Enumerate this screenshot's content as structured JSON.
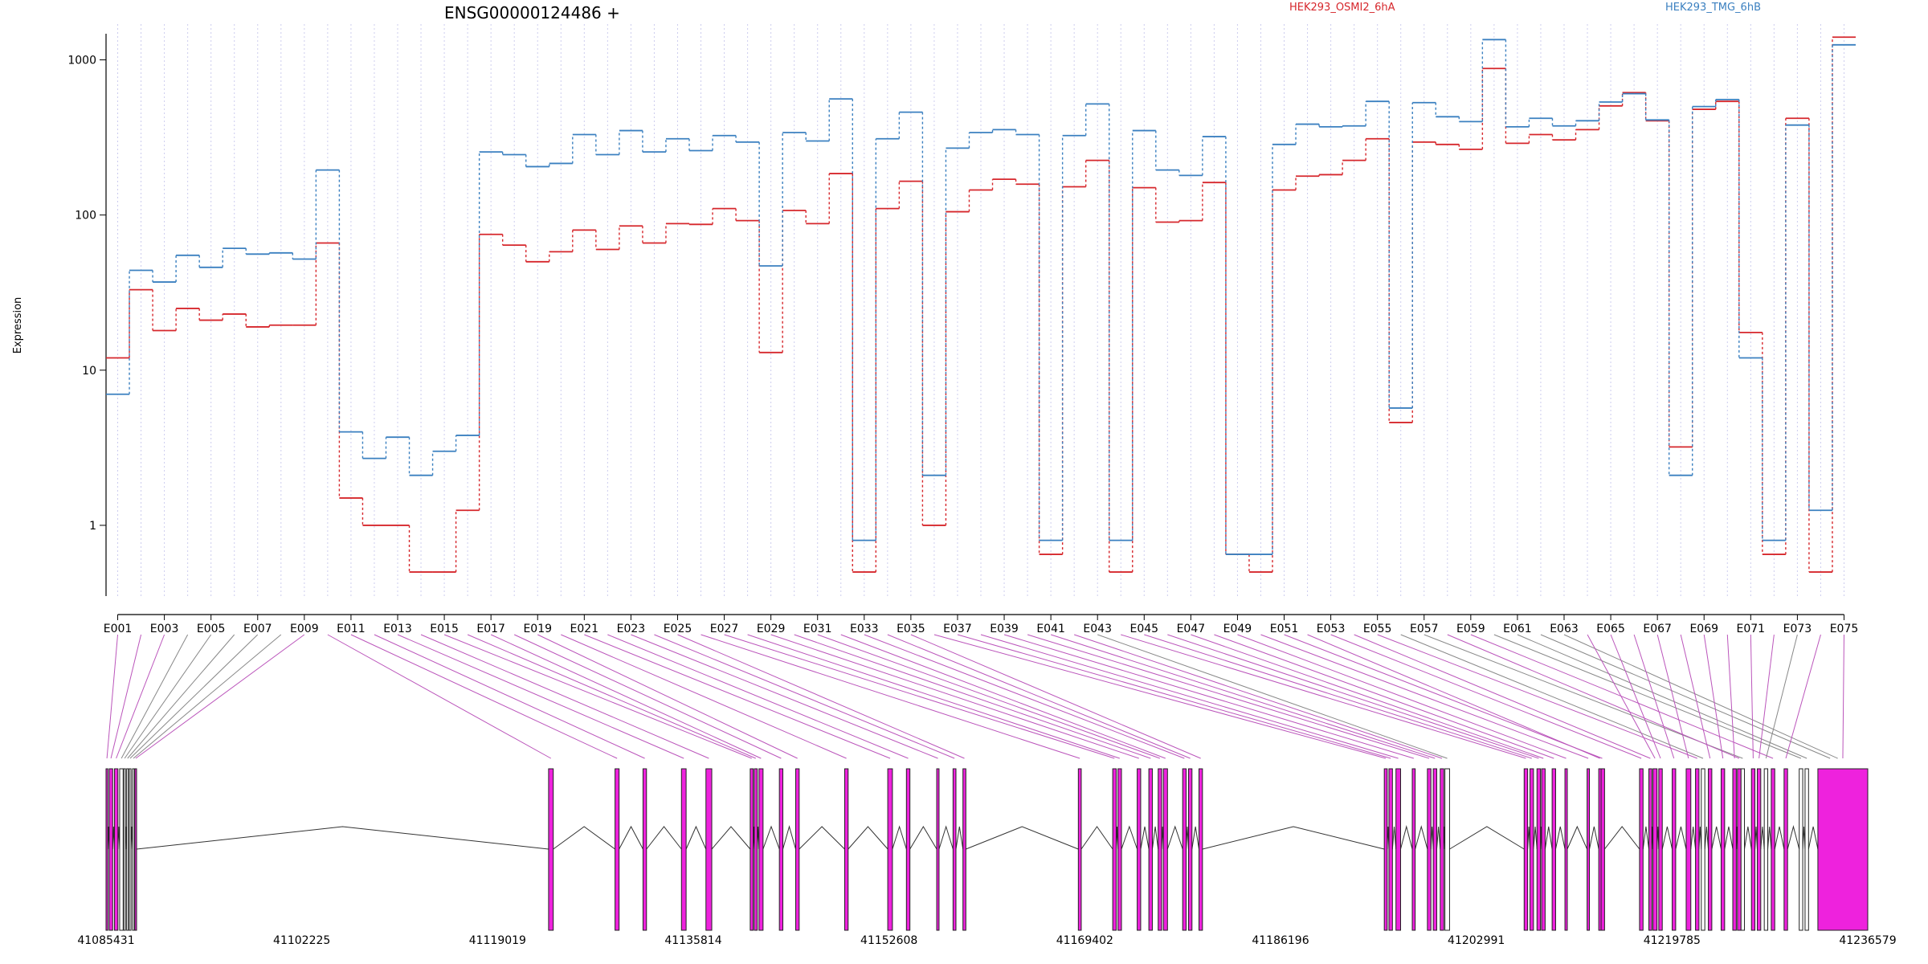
{
  "chart_data": {
    "type": "line",
    "title": "ENSG00000124486 +",
    "ylabel": "Expression",
    "xlabel": "",
    "yscale": "log",
    "ylim": [
      0.35,
      1700
    ],
    "yticks": [
      "1",
      "10",
      "100",
      "1000"
    ],
    "ytick_values": [
      1,
      10,
      100,
      1000
    ],
    "grid": "vertical dotted lines at each exon",
    "legend_placement": "top",
    "colors": {
      "HEK293_OSMI2_6hA": "#d6272c",
      "HEK293_TMG_6hB": "#3b80c0",
      "grid": "#ccccee",
      "exon_tested": "#ee22dd",
      "exon_untested": "#ffffff",
      "connector_tested": "#bb55bb",
      "connector_untested": "#888888"
    },
    "exon_tick_labels": [
      "E001",
      "E003",
      "E005",
      "E007",
      "E009",
      "E011",
      "E013",
      "E015",
      "E017",
      "E019",
      "E021",
      "E023",
      "E025",
      "E027",
      "E029",
      "E031",
      "E033",
      "E035",
      "E037",
      "E039",
      "E041",
      "E043",
      "E045",
      "E047",
      "E049",
      "E051",
      "E053",
      "E055",
      "E057",
      "E059",
      "E061",
      "E063",
      "E065",
      "E067",
      "E069",
      "E071",
      "E073",
      "E075"
    ],
    "series": [
      {
        "name": "HEK293_OSMI2_6hA",
        "values": [
          12,
          33,
          18,
          25,
          21,
          23,
          19,
          19.5,
          19.5,
          66,
          1.5,
          1,
          1,
          0.5,
          0.5,
          1.25,
          75,
          64,
          50,
          58,
          80,
          60,
          85,
          66,
          88,
          87,
          110,
          92,
          13,
          107,
          88,
          185,
          0.5,
          110,
          165,
          1,
          105,
          145,
          170,
          158,
          0.65,
          152,
          225,
          0.5,
          150,
          90,
          92,
          162,
          0.65,
          0.5,
          145,
          178,
          182,
          225,
          310,
          4.6,
          295,
          285,
          265,
          880,
          290,
          330,
          305,
          355,
          505,
          615,
          405,
          3.2,
          480,
          540,
          17.5,
          0.65,
          420,
          0.5,
          1400
        ]
      },
      {
        "name": "HEK293_TMG_6hB",
        "values": [
          7,
          44,
          37,
          55,
          46,
          61,
          56,
          57,
          52,
          195,
          4,
          2.7,
          3.7,
          2.1,
          3,
          3.8,
          255,
          245,
          205,
          215,
          330,
          245,
          350,
          255,
          310,
          260,
          325,
          295,
          47,
          340,
          300,
          560,
          0.8,
          310,
          460,
          2.1,
          270,
          340,
          355,
          330,
          0.8,
          325,
          520,
          0.8,
          350,
          195,
          180,
          320,
          0.65,
          0.65,
          285,
          385,
          370,
          375,
          540,
          5.7,
          530,
          430,
          400,
          1350,
          370,
          420,
          375,
          405,
          535,
          605,
          410,
          2.1,
          500,
          555,
          12,
          0.8,
          380,
          1.25,
          1250
        ]
      }
    ],
    "exon_tested": [
      1,
      1,
      1,
      0,
      0,
      0,
      0,
      0,
      1,
      1,
      1,
      1,
      1,
      1,
      1,
      1,
      1,
      1,
      1,
      1,
      1,
      1,
      1,
      1,
      1,
      1,
      1,
      1,
      1,
      1,
      1,
      1,
      1,
      1,
      1,
      1,
      1,
      1,
      1,
      1,
      1,
      1,
      0,
      1,
      1,
      1,
      1,
      1,
      1,
      1,
      1,
      1,
      1,
      1,
      1,
      0,
      0,
      1,
      1,
      0,
      0,
      0,
      0,
      1,
      1,
      1,
      1,
      1,
      1,
      1,
      1,
      1,
      0,
      1,
      1
    ],
    "gene_model": {
      "coordinate_labels": [
        "41085431",
        "41102225",
        "41119019",
        "41135814",
        "41152608",
        "41169402",
        "41186196",
        "41202991",
        "41219785",
        "41236579"
      ],
      "coordinate_start": 41085431,
      "coordinate_end": 41236579,
      "exons": [
        [
          41085431,
          41085500
        ],
        [
          41085700,
          41086000
        ],
        [
          41086150,
          41086450
        ],
        [
          41086600,
          41086900
        ],
        [
          41086950,
          41087050
        ],
        [
          41087200,
          41087300
        ],
        [
          41087420,
          41087520
        ],
        [
          41087700,
          41087780
        ],
        [
          41087900,
          41088000
        ],
        [
          41123400,
          41123800
        ],
        [
          41129100,
          41129450
        ],
        [
          41131500,
          41131800
        ],
        [
          41134800,
          41135200
        ],
        [
          41136900,
          41137400
        ],
        [
          41140700,
          41140950
        ],
        [
          41141050,
          41141300
        ],
        [
          41141450,
          41141800
        ],
        [
          41143200,
          41143500
        ],
        [
          41144600,
          41144900
        ],
        [
          41148800,
          41149100
        ],
        [
          41152500,
          41152900
        ],
        [
          41154100,
          41154400
        ],
        [
          41156700,
          41156900
        ],
        [
          41158100,
          41158350
        ],
        [
          41158950,
          41159200
        ],
        [
          41168850,
          41169100
        ],
        [
          41171800,
          41172100
        ],
        [
          41172250,
          41172550
        ],
        [
          41173900,
          41174200
        ],
        [
          41174900,
          41175200
        ],
        [
          41175700,
          41176000
        ],
        [
          41176150,
          41176500
        ],
        [
          41177800,
          41178100
        ],
        [
          41178300,
          41178600
        ],
        [
          41179200,
          41179500
        ],
        [
          41195100,
          41195350
        ],
        [
          41195500,
          41195800
        ],
        [
          41196100,
          41196500
        ],
        [
          41197500,
          41197750
        ],
        [
          41198800,
          41199100
        ],
        [
          41199300,
          41199600
        ],
        [
          41199900,
          41200200
        ],
        [
          41200300,
          41200700
        ],
        [
          41207100,
          41207400
        ],
        [
          41207600,
          41207900
        ],
        [
          41208200,
          41208500
        ],
        [
          41208600,
          41208900
        ],
        [
          41209500,
          41209800
        ],
        [
          41210600,
          41210800
        ],
        [
          41212500,
          41212700
        ],
        [
          41213600,
          41214000
        ],
        [
          41213500,
          41213700
        ],
        [
          41217000,
          41217300
        ],
        [
          41217800,
          41218050
        ],
        [
          41221800,
          41222100
        ],
        [
          41222300,
          41222600
        ],
        [
          41225700,
          41226000
        ],
        [
          41225400,
          41225700
        ],
        [
          41228300,
          41228600
        ],
        [
          41230700,
          41231000
        ],
        [
          41231200,
          41231500
        ],
        [
          41233100,
          41233600
        ],
        [
          41233700,
          41234300
        ],
        [
          41218150,
          41218500
        ],
        [
          41218650,
          41218950
        ],
        [
          41219800,
          41220100
        ],
        [
          41221000,
          41221400
        ],
        [
          41222900,
          41223200
        ],
        [
          41224000,
          41224300
        ],
        [
          41225000,
          41225300
        ],
        [
          41226600,
          41226900
        ],
        [
          41227100,
          41227400
        ],
        [
          41227700,
          41228000
        ],
        [
          41229400,
          41229700
        ],
        [
          41232300,
          41236579
        ]
      ]
    }
  }
}
